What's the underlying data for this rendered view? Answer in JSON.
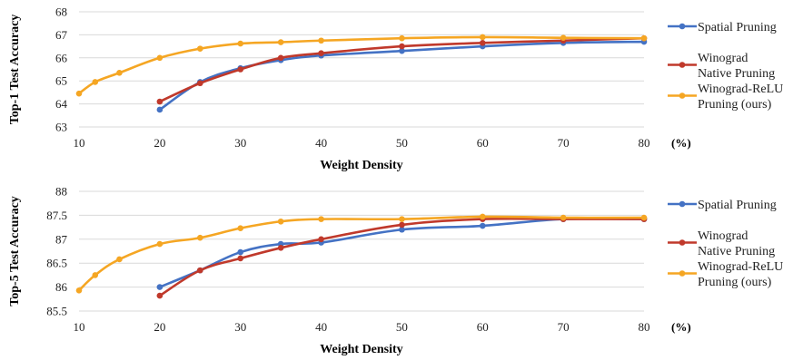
{
  "colors": {
    "Spatial Pruning": "#4472C4",
    "Winograd Native Pruning": "#C0392B",
    "Winograd-ReLU Pruning (ours)": "#F5A623"
  },
  "chart_data": [
    {
      "type": "line",
      "ylabel": "Top-1 Test Accuracy",
      "xlabel": "Weight Density",
      "x_unit": "(%)",
      "xlim": [
        10,
        80
      ],
      "ylim": [
        63,
        68
      ],
      "xticks": [
        10,
        20,
        30,
        40,
        50,
        60,
        70,
        80
      ],
      "yticks": [
        63,
        64,
        65,
        66,
        67,
        68
      ],
      "grid": true,
      "legend_position": "right",
      "series": [
        {
          "name": "Spatial Pruning",
          "legend_lines": [
            "Spatial Pruning"
          ],
          "x": [
            20,
            25,
            30,
            35,
            40,
            50,
            60,
            70,
            80
          ],
          "y": [
            63.75,
            64.95,
            65.55,
            65.9,
            66.1,
            66.3,
            66.5,
            66.65,
            66.7
          ]
        },
        {
          "name": "Winograd Native Pruning",
          "legend_lines": [
            "Winograd",
            "Native Pruning"
          ],
          "x": [
            20,
            25,
            30,
            35,
            40,
            50,
            60,
            70,
            80
          ],
          "y": [
            64.1,
            64.9,
            65.5,
            66.0,
            66.2,
            66.5,
            66.65,
            66.75,
            66.85
          ]
        },
        {
          "name": "Winograd-ReLU Pruning (ours)",
          "legend_lines": [
            "Winograd-ReLU",
            "Pruning (ours)"
          ],
          "x": [
            10,
            12,
            15,
            20,
            25,
            30,
            35,
            40,
            50,
            60,
            70,
            80
          ],
          "y": [
            64.45,
            64.95,
            65.35,
            66.0,
            66.4,
            66.62,
            66.68,
            66.75,
            66.85,
            66.9,
            66.87,
            66.85
          ]
        }
      ]
    },
    {
      "type": "line",
      "ylabel": "Top-5 Test Accuracy",
      "xlabel": "Weight Density",
      "x_unit": "(%)",
      "xlim": [
        10,
        80
      ],
      "ylim": [
        85.5,
        88
      ],
      "xticks": [
        10,
        20,
        30,
        40,
        50,
        60,
        70,
        80
      ],
      "yticks": [
        85.5,
        86,
        86.5,
        87,
        87.5,
        88
      ],
      "grid": true,
      "legend_position": "right",
      "series": [
        {
          "name": "Spatial Pruning",
          "legend_lines": [
            "Spatial Pruning"
          ],
          "x": [
            20,
            25,
            30,
            35,
            40,
            50,
            60,
            70,
            80
          ],
          "y": [
            86.0,
            86.35,
            86.73,
            86.9,
            86.93,
            87.2,
            87.28,
            87.42,
            87.42
          ]
        },
        {
          "name": "Winograd Native Pruning",
          "legend_lines": [
            "Winograd",
            "Native Pruning"
          ],
          "x": [
            20,
            25,
            30,
            35,
            40,
            50,
            60,
            70,
            80
          ],
          "y": [
            85.82,
            86.35,
            86.6,
            86.82,
            87.0,
            87.3,
            87.42,
            87.42,
            87.42
          ]
        },
        {
          "name": "Winograd-ReLU Pruning (ours)",
          "legend_lines": [
            "Winograd-ReLU",
            "Pruning (ours)"
          ],
          "x": [
            10,
            12,
            15,
            20,
            25,
            30,
            35,
            40,
            50,
            60,
            70,
            80
          ],
          "y": [
            85.93,
            86.25,
            86.58,
            86.9,
            87.03,
            87.23,
            87.37,
            87.42,
            87.42,
            87.47,
            87.45,
            87.45
          ]
        }
      ]
    }
  ]
}
